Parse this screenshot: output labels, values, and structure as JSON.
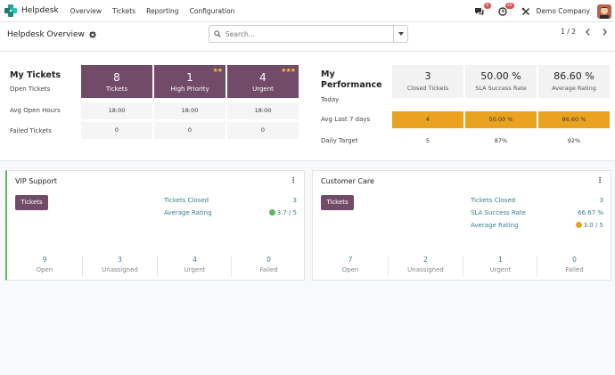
{
  "navbar": {
    "app_name": "Helpdesk",
    "menu": [
      "Overview",
      "Tickets",
      "Reporting",
      "Configuration"
    ],
    "messages_badge": "9",
    "activities_badge": "26",
    "company": "Demo Company"
  },
  "control": {
    "breadcrumb": "Helpdesk Overview",
    "search_placeholder": "Search...",
    "pager": "1 / 2"
  },
  "my_tickets": {
    "title": "My Tickets",
    "rows": [
      "Open Tickets",
      "Avg Open Hours",
      "Failed Tickets"
    ],
    "columns": [
      {
        "value": "8",
        "label": "Tickets",
        "stars": "",
        "avg_hours": "18:00",
        "failed": "0"
      },
      {
        "value": "1",
        "label": "High Priority",
        "stars": "★★",
        "avg_hours": "18:00",
        "failed": "0"
      },
      {
        "value": "4",
        "label": "Urgent",
        "stars": "★★★",
        "avg_hours": "18:00",
        "failed": "0"
      }
    ]
  },
  "my_performance": {
    "title_line1": "My",
    "title_line2": "Performance",
    "rows": [
      "Today",
      "Avg Last 7 days",
      "Daily Target"
    ],
    "columns": [
      {
        "value": "3",
        "label": "Closed Tickets",
        "avg7": "4",
        "target": "5"
      },
      {
        "value": "50.00 %",
        "label": "SLA Success Rate",
        "avg7": "50.00 %",
        "target": "87%"
      },
      {
        "value": "86.60 %",
        "label": "Average Rating",
        "avg7": "86.60 %",
        "target": "92%"
      }
    ]
  },
  "teams": [
    {
      "name": "VIP Support",
      "button": "Tickets",
      "metrics": [
        {
          "label": "Tickets Closed",
          "value": "3"
        },
        {
          "label": "Average Rating",
          "value": "3.7 / 5"
        }
      ],
      "stats": [
        {
          "value": "9",
          "label": "Open"
        },
        {
          "value": "3",
          "label": "Unassigned"
        },
        {
          "value": "4",
          "label": "Urgent"
        },
        {
          "value": "0",
          "label": "Failed"
        }
      ]
    },
    {
      "name": "Customer Care",
      "button": "Tickets",
      "metrics": [
        {
          "label": "Tickets Closed",
          "value": "3"
        },
        {
          "label": "SLA Success Rate",
          "value": "66.67 %"
        },
        {
          "label": "Average Rating",
          "value": "3.0 / 5"
        }
      ],
      "stats": [
        {
          "value": "7",
          "label": "Open"
        },
        {
          "value": "2",
          "label": "Unassigned"
        },
        {
          "value": "1",
          "label": "Urgent"
        },
        {
          "value": "0",
          "label": "Failed"
        }
      ]
    }
  ],
  "colors": {
    "brand_purple": "#714b67",
    "accent_orange": "#e9a321",
    "link_teal": "#3a7e8e",
    "vip_border": "#5cb85c",
    "badge_red": "#d9534f"
  }
}
